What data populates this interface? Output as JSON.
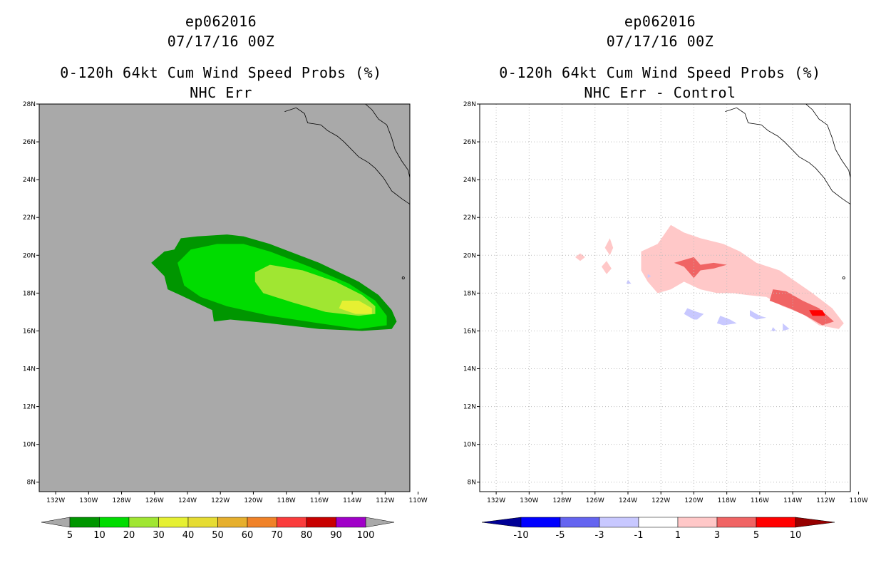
{
  "chart_data": [
    {
      "type": "heatmap",
      "panel": "left",
      "titles": [
        "ep062016",
        "07/17/16 00Z",
        "0-120h 64kt Cum Wind Speed Probs (%)",
        "NHC Err"
      ],
      "x_ticks": [
        "132W",
        "130W",
        "128W",
        "126W",
        "124W",
        "122W",
        "120W",
        "118W",
        "116W",
        "114W",
        "112W",
        "110W"
      ],
      "y_ticks": [
        "8N",
        "10N",
        "12N",
        "14N",
        "16N",
        "18N",
        "20N",
        "22N",
        "24N",
        "26N",
        "28N"
      ],
      "xlim": [
        -133,
        -110.5
      ],
      "ylim": [
        7.5,
        28
      ],
      "background_color": "#a9a9a9",
      "grid": false,
      "colorbar": {
        "labels": [
          "5",
          "10",
          "20",
          "30",
          "40",
          "50",
          "60",
          "70",
          "80",
          "90",
          "100"
        ],
        "colors": [
          "#009600",
          "#00dc00",
          "#a0e632",
          "#e6f032",
          "#e6dc32",
          "#e6af2d",
          "#f08228",
          "#fa3c3c",
          "#c80000",
          "#a000c8"
        ]
      },
      "contours": [
        {
          "level": "5-10",
          "color": "#009600",
          "polygon": [
            [
              -126.2,
              19.6
            ],
            [
              -125.4,
              20.2
            ],
            [
              -124.8,
              20.3
            ],
            [
              -124.4,
              20.9
            ],
            [
              -123.4,
              21.0
            ],
            [
              -121.6,
              21.1
            ],
            [
              -120.6,
              21.0
            ],
            [
              -119,
              20.6
            ],
            [
              -116,
              19.6
            ],
            [
              -113.6,
              18.6
            ],
            [
              -112.4,
              17.9
            ],
            [
              -111.6,
              17.1
            ],
            [
              -111.3,
              16.5
            ],
            [
              -111.6,
              16.1
            ],
            [
              -113.4,
              16.0
            ],
            [
              -116,
              16.1
            ],
            [
              -119,
              16.4
            ],
            [
              -121.4,
              16.6
            ],
            [
              -122.4,
              16.5
            ],
            [
              -122.5,
              17.1
            ],
            [
              -124.2,
              17.8
            ],
            [
              -125.2,
              18.2
            ],
            [
              -125.4,
              18.9
            ]
          ]
        },
        {
          "level": "10-20",
          "color": "#00dc00",
          "polygon": [
            [
              -124.6,
              19.6
            ],
            [
              -123.8,
              20.3
            ],
            [
              -122.2,
              20.6
            ],
            [
              -120.6,
              20.6
            ],
            [
              -119,
              20.2
            ],
            [
              -116.6,
              19.4
            ],
            [
              -114.2,
              18.5
            ],
            [
              -112.6,
              17.6
            ],
            [
              -111.9,
              16.8
            ],
            [
              -111.9,
              16.3
            ],
            [
              -113.6,
              16.1
            ],
            [
              -116,
              16.4
            ],
            [
              -119,
              16.8
            ],
            [
              -121.6,
              17.3
            ],
            [
              -123.2,
              17.8
            ],
            [
              -124.2,
              18.4
            ]
          ]
        },
        {
          "level": "20-30",
          "color": "#a0e632",
          "polygon": [
            [
              -119.9,
              19.1
            ],
            [
              -119,
              19.5
            ],
            [
              -117,
              19.2
            ],
            [
              -115,
              18.6
            ],
            [
              -113.4,
              17.9
            ],
            [
              -112.6,
              17.3
            ],
            [
              -112.6,
              16.9
            ],
            [
              -113.6,
              16.8
            ],
            [
              -115.6,
              17.0
            ],
            [
              -117.6,
              17.5
            ],
            [
              -119.4,
              18.0
            ],
            [
              -119.9,
              18.6
            ]
          ]
        },
        {
          "level": "30-40",
          "color": "#e6f032",
          "polygon": [
            [
              -114.6,
              17.6
            ],
            [
              -113.6,
              17.6
            ],
            [
              -112.8,
              17.2
            ],
            [
              -112.8,
              16.9
            ],
            [
              -113.8,
              16.9
            ],
            [
              -114.8,
              17.2
            ]
          ]
        }
      ]
    },
    {
      "type": "heatmap",
      "panel": "right",
      "titles": [
        "ep062016",
        "07/17/16 00Z",
        "0-120h 64kt Cum Wind Speed Probs (%)",
        "NHC Err - Control"
      ],
      "x_ticks": [
        "132W",
        "130W",
        "128W",
        "126W",
        "124W",
        "122W",
        "120W",
        "118W",
        "116W",
        "114W",
        "112W",
        "110W"
      ],
      "y_ticks": [
        "8N",
        "10N",
        "12N",
        "14N",
        "16N",
        "18N",
        "20N",
        "22N",
        "24N",
        "26N",
        "28N"
      ],
      "xlim": [
        -133,
        -110.5
      ],
      "ylim": [
        7.5,
        28
      ],
      "background_color": "#ffffff",
      "grid": true,
      "colorbar": {
        "labels": [
          "-10",
          "-5",
          "-3",
          "-1",
          "1",
          "3",
          "5",
          "10"
        ],
        "colors": [
          "#000096",
          "#0000ff",
          "#6464f0",
          "#c8c8ff",
          "#ffffff",
          "#ffc8c8",
          "#f06464",
          "#ff0000",
          "#960000"
        ]
      },
      "contours": [
        {
          "level": "1-3",
          "color": "#ffc8c8",
          "polygon": [
            [
              -123.2,
              20.2
            ],
            [
              -122.2,
              20.6
            ],
            [
              -121.4,
              21.6
            ],
            [
              -120.6,
              21.2
            ],
            [
              -119.6,
              20.9
            ],
            [
              -118.2,
              20.6
            ],
            [
              -117.2,
              20.2
            ],
            [
              -116.2,
              19.6
            ],
            [
              -114.8,
              19.2
            ],
            [
              -113.8,
              18.6
            ],
            [
              -112.8,
              18.0
            ],
            [
              -111.6,
              17.2
            ],
            [
              -110.9,
              16.4
            ],
            [
              -111.2,
              16.1
            ],
            [
              -112.4,
              16.3
            ],
            [
              -113.4,
              16.9
            ],
            [
              -114.6,
              17.3
            ],
            [
              -115.6,
              17.8
            ],
            [
              -116.8,
              17.9
            ],
            [
              -117.6,
              18.0
            ],
            [
              -118.6,
              18.0
            ],
            [
              -119.6,
              18.2
            ],
            [
              -120.6,
              18.6
            ],
            [
              -121.4,
              18.2
            ],
            [
              -122.2,
              18.0
            ],
            [
              -122.8,
              18.6
            ],
            [
              -123.2,
              19.2
            ]
          ]
        },
        {
          "level": "1-3",
          "color": "#ffc8c8",
          "polygon": [
            [
              -127.2,
              19.9
            ],
            [
              -126.9,
              20.1
            ],
            [
              -126.6,
              19.9
            ],
            [
              -126.9,
              19.7
            ]
          ]
        },
        {
          "level": "1-3",
          "color": "#ffc8c8",
          "polygon": [
            [
              -125.4,
              20.4
            ],
            [
              -125.1,
              20.9
            ],
            [
              -124.9,
              20.4
            ],
            [
              -125.1,
              20.0
            ]
          ]
        },
        {
          "level": "1-3",
          "color": "#ffc8c8",
          "polygon": [
            [
              -125.6,
              19.4
            ],
            [
              -125.3,
              19.7
            ],
            [
              -125.0,
              19.3
            ],
            [
              -125.3,
              19.0
            ]
          ]
        },
        {
          "level": "3-5",
          "color": "#f06464",
          "polygon": [
            [
              -121.2,
              19.6
            ],
            [
              -120.0,
              19.9
            ],
            [
              -119.6,
              19.5
            ],
            [
              -118.8,
              19.6
            ],
            [
              -118.0,
              19.5
            ],
            [
              -118.8,
              19.3
            ],
            [
              -119.6,
              19.2
            ],
            [
              -120.0,
              18.8
            ],
            [
              -120.6,
              19.4
            ]
          ]
        },
        {
          "level": "3-5",
          "color": "#f06464",
          "polygon": [
            [
              -115.2,
              18.2
            ],
            [
              -114.4,
              18.1
            ],
            [
              -113.4,
              17.6
            ],
            [
              -112.4,
              17.2
            ],
            [
              -111.5,
              16.5
            ],
            [
              -112.2,
              16.3
            ],
            [
              -113.2,
              16.8
            ],
            [
              -114.2,
              17.2
            ],
            [
              -115.4,
              17.6
            ]
          ]
        },
        {
          "level": "5-10",
          "color": "#ff0000",
          "polygon": [
            [
              -113.0,
              17.1
            ],
            [
              -112.2,
              17.1
            ],
            [
              -112.0,
              16.8
            ],
            [
              -112.8,
              16.8
            ]
          ]
        },
        {
          "level": "-3--1",
          "color": "#c8c8ff",
          "polygon": [
            [
              -120.4,
              17.2
            ],
            [
              -119.8,
              17.0
            ],
            [
              -119.4,
              16.9
            ],
            [
              -119.8,
              16.6
            ],
            [
              -120.0,
              16.6
            ],
            [
              -120.6,
              16.9
            ]
          ]
        },
        {
          "level": "-3--1",
          "color": "#c8c8ff",
          "polygon": [
            [
              -118.4,
              16.8
            ],
            [
              -117.8,
              16.6
            ],
            [
              -117.4,
              16.4
            ],
            [
              -118.2,
              16.3
            ],
            [
              -118.6,
              16.4
            ]
          ]
        },
        {
          "level": "-3--1",
          "color": "#c8c8ff",
          "polygon": [
            [
              -116.6,
              17.1
            ],
            [
              -116.0,
              16.8
            ],
            [
              -115.6,
              16.7
            ],
            [
              -116.2,
              16.6
            ],
            [
              -116.6,
              16.8
            ]
          ]
        },
        {
          "level": "-3--1",
          "color": "#c8c8ff",
          "polygon": [
            [
              -114.6,
              16.4
            ],
            [
              -114.2,
              16.1
            ],
            [
              -114.6,
              16.0
            ]
          ]
        },
        {
          "level": "-3--1",
          "color": "#c8c8ff",
          "polygon": [
            [
              -115.2,
              16.2
            ],
            [
              -115.0,
              16.0
            ],
            [
              -115.3,
              16.0
            ]
          ]
        },
        {
          "level": "-3--1",
          "color": "#c8c8ff",
          "polygon": [
            [
              -124.0,
              18.7
            ],
            [
              -123.8,
              18.5
            ],
            [
              -124.1,
              18.5
            ]
          ]
        },
        {
          "level": "-3--1",
          "color": "#c8c8ff",
          "polygon": [
            [
              -122.8,
              19.0
            ],
            [
              -122.6,
              18.9
            ],
            [
              -122.8,
              18.8
            ]
          ]
        }
      ]
    }
  ]
}
